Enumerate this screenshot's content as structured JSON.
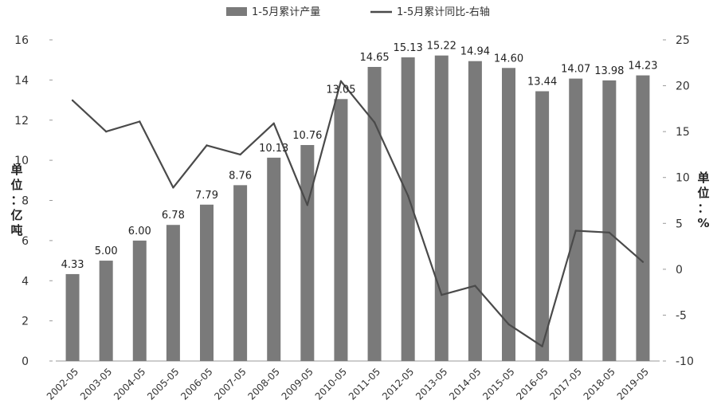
{
  "chart_data": {
    "type": "bar",
    "categories": [
      "2002-05",
      "2003-05",
      "2004-05",
      "2005-05",
      "2006-05",
      "2007-05",
      "2008-05",
      "2009-05",
      "2010-05",
      "2011-05",
      "2012-05",
      "2013-05",
      "2014-05",
      "2015-05",
      "2016-05",
      "2017-05",
      "2018-05",
      "2019-05"
    ],
    "series": [
      {
        "name": "1-5月累计产量",
        "type": "bar",
        "axis": "left",
        "color": "#7a7a7a",
        "values": [
          4.33,
          5.0,
          6.0,
          6.78,
          7.79,
          8.76,
          10.13,
          10.76,
          13.05,
          14.65,
          15.13,
          15.22,
          14.94,
          14.6,
          13.44,
          14.07,
          13.98,
          14.23
        ],
        "data_labels": [
          "4.33",
          "5.00",
          "6.00",
          "6.78",
          "7.79",
          "8.76",
          "10.13",
          "10.76",
          "13.05",
          "14.65",
          "15.13",
          "15.22",
          "14.94",
          "14.60",
          "13.44",
          "14.07",
          "13.98",
          "14.23"
        ]
      },
      {
        "name": "1-5月累计同比-右轴",
        "type": "line",
        "axis": "right",
        "color": "#4a4a4a",
        "values": [
          18.4,
          15.0,
          16.1,
          8.9,
          13.5,
          12.5,
          15.9,
          7.0,
          20.5,
          16.0,
          8.0,
          -2.8,
          -1.8,
          -6.0,
          -8.4,
          4.2,
          4.0,
          0.8
        ]
      }
    ],
    "left_axis": {
      "label": "单位：亿吨",
      "ylim": [
        0,
        16
      ],
      "ticks": [
        "0",
        "2",
        "4",
        "6",
        "8",
        "10",
        "12",
        "14",
        "16"
      ]
    },
    "right_axis": {
      "label": "单位：%",
      "ylim": [
        -10,
        25
      ],
      "ticks": [
        "-10",
        "-5",
        "0",
        "5",
        "10",
        "15",
        "20",
        "25"
      ]
    },
    "legend_position": "top-center",
    "grid": false
  }
}
